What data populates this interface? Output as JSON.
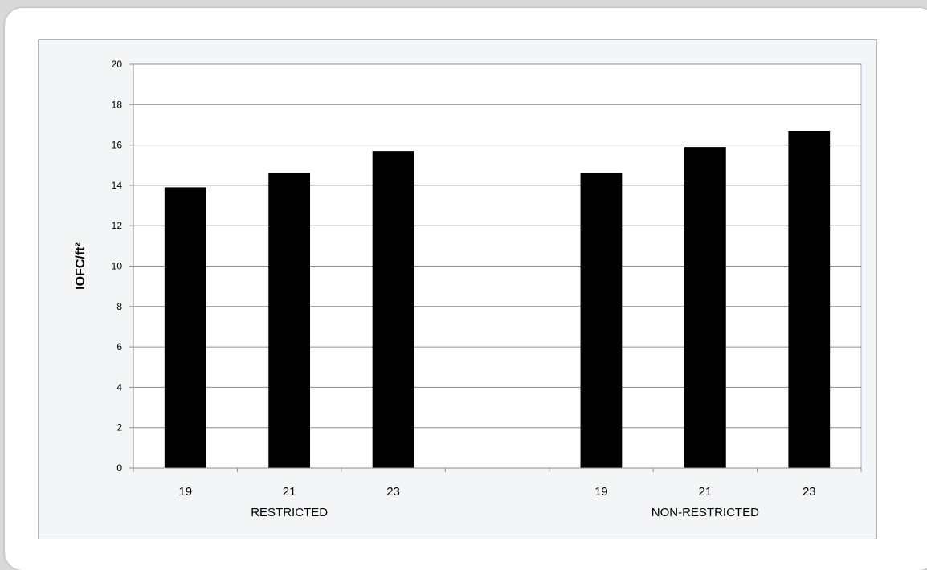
{
  "chart_data": {
    "type": "bar",
    "title": "",
    "ylabel": "IOFC/ft²",
    "ylim": [
      0,
      20
    ],
    "yticks": [
      0,
      2,
      4,
      6,
      8,
      10,
      12,
      14,
      16,
      18,
      20
    ],
    "grid": true,
    "legend": "none",
    "groups": [
      {
        "label": "RESTRICTED",
        "categories": [
          "19",
          "21",
          "23"
        ],
        "values": [
          13.9,
          14.6,
          15.7
        ]
      },
      {
        "label": "NON-RESTRICTED",
        "categories": [
          "19",
          "21",
          "23"
        ],
        "values": [
          14.6,
          15.9,
          16.7
        ]
      }
    ],
    "colors": {
      "bar": "#000000",
      "grid": "#8c8c8c",
      "plot_background": "#ffffff",
      "plot_border": "#9db7d7"
    }
  }
}
